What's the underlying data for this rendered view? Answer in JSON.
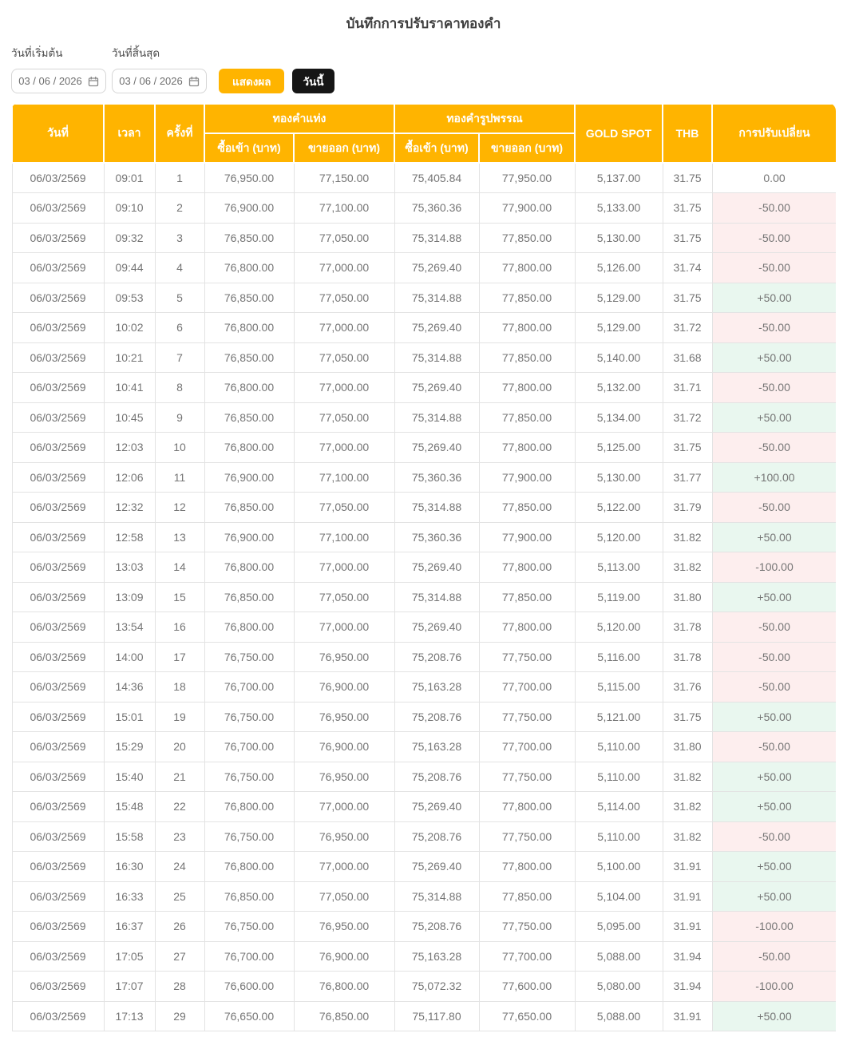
{
  "page": {
    "title": "บันทึกการปรับราคาทองคำ"
  },
  "filters": {
    "start_date_label": "วันที่เริ่มต้น",
    "end_date_label": "วันที่สิ้นสุด",
    "start_date_value": "03 / 06 / 2026",
    "end_date_value": "03 / 06 / 2026",
    "show_button_label": "แสดงผล",
    "today_button_label": "วันนี้",
    "calendar_icon": "calendar-icon"
  },
  "colors": {
    "header_accent": "#ffb400",
    "show_button": "#ffb400",
    "today_button": "#161616",
    "negative_cell_bg": "#fdeeee",
    "positive_cell_bg": "#e9f7ef",
    "body_text": "#757575"
  },
  "table": {
    "headers": {
      "date": "วันที่",
      "time": "เวลา",
      "round": "ครั้งที่",
      "gold_bar_group": "ทองคำแท่ง",
      "gold_ornament_group": "ทองคำรูปพรรณ",
      "bar_buy": "ซื้อเข้า (บาท)",
      "bar_sell": "ขายออก (บาท)",
      "ornament_buy": "ซื้อเข้า (บาท)",
      "ornament_sell": "ขายออก (บาท)",
      "gold_spot": "GOLD SPOT",
      "thb": "THB",
      "adjustment": "การปรับเปลี่ยน"
    },
    "rows": [
      [
        "06/03/2569",
        "09:01",
        "1",
        "76,950.00",
        "77,150.00",
        "75,405.84",
        "77,950.00",
        "5,137.00",
        "31.75",
        "0.00"
      ],
      [
        "06/03/2569",
        "09:10",
        "2",
        "76,900.00",
        "77,100.00",
        "75,360.36",
        "77,900.00",
        "5,133.00",
        "31.75",
        "-50.00"
      ],
      [
        "06/03/2569",
        "09:32",
        "3",
        "76,850.00",
        "77,050.00",
        "75,314.88",
        "77,850.00",
        "5,130.00",
        "31.75",
        "-50.00"
      ],
      [
        "06/03/2569",
        "09:44",
        "4",
        "76,800.00",
        "77,000.00",
        "75,269.40",
        "77,800.00",
        "5,126.00",
        "31.74",
        "-50.00"
      ],
      [
        "06/03/2569",
        "09:53",
        "5",
        "76,850.00",
        "77,050.00",
        "75,314.88",
        "77,850.00",
        "5,129.00",
        "31.75",
        "+50.00"
      ],
      [
        "06/03/2569",
        "10:02",
        "6",
        "76,800.00",
        "77,000.00",
        "75,269.40",
        "77,800.00",
        "5,129.00",
        "31.72",
        "-50.00"
      ],
      [
        "06/03/2569",
        "10:21",
        "7",
        "76,850.00",
        "77,050.00",
        "75,314.88",
        "77,850.00",
        "5,140.00",
        "31.68",
        "+50.00"
      ],
      [
        "06/03/2569",
        "10:41",
        "8",
        "76,800.00",
        "77,000.00",
        "75,269.40",
        "77,800.00",
        "5,132.00",
        "31.71",
        "-50.00"
      ],
      [
        "06/03/2569",
        "10:45",
        "9",
        "76,850.00",
        "77,050.00",
        "75,314.88",
        "77,850.00",
        "5,134.00",
        "31.72",
        "+50.00"
      ],
      [
        "06/03/2569",
        "12:03",
        "10",
        "76,800.00",
        "77,000.00",
        "75,269.40",
        "77,800.00",
        "5,125.00",
        "31.75",
        "-50.00"
      ],
      [
        "06/03/2569",
        "12:06",
        "11",
        "76,900.00",
        "77,100.00",
        "75,360.36",
        "77,900.00",
        "5,130.00",
        "31.77",
        "+100.00"
      ],
      [
        "06/03/2569",
        "12:32",
        "12",
        "76,850.00",
        "77,050.00",
        "75,314.88",
        "77,850.00",
        "5,122.00",
        "31.79",
        "-50.00"
      ],
      [
        "06/03/2569",
        "12:58",
        "13",
        "76,900.00",
        "77,100.00",
        "75,360.36",
        "77,900.00",
        "5,120.00",
        "31.82",
        "+50.00"
      ],
      [
        "06/03/2569",
        "13:03",
        "14",
        "76,800.00",
        "77,000.00",
        "75,269.40",
        "77,800.00",
        "5,113.00",
        "31.82",
        "-100.00"
      ],
      [
        "06/03/2569",
        "13:09",
        "15",
        "76,850.00",
        "77,050.00",
        "75,314.88",
        "77,850.00",
        "5,119.00",
        "31.80",
        "+50.00"
      ],
      [
        "06/03/2569",
        "13:54",
        "16",
        "76,800.00",
        "77,000.00",
        "75,269.40",
        "77,800.00",
        "5,120.00",
        "31.78",
        "-50.00"
      ],
      [
        "06/03/2569",
        "14:00",
        "17",
        "76,750.00",
        "76,950.00",
        "75,208.76",
        "77,750.00",
        "5,116.00",
        "31.78",
        "-50.00"
      ],
      [
        "06/03/2569",
        "14:36",
        "18",
        "76,700.00",
        "76,900.00",
        "75,163.28",
        "77,700.00",
        "5,115.00",
        "31.76",
        "-50.00"
      ],
      [
        "06/03/2569",
        "15:01",
        "19",
        "76,750.00",
        "76,950.00",
        "75,208.76",
        "77,750.00",
        "5,121.00",
        "31.75",
        "+50.00"
      ],
      [
        "06/03/2569",
        "15:29",
        "20",
        "76,700.00",
        "76,900.00",
        "75,163.28",
        "77,700.00",
        "5,110.00",
        "31.80",
        "-50.00"
      ],
      [
        "06/03/2569",
        "15:40",
        "21",
        "76,750.00",
        "76,950.00",
        "75,208.76",
        "77,750.00",
        "5,110.00",
        "31.82",
        "+50.00"
      ],
      [
        "06/03/2569",
        "15:48",
        "22",
        "76,800.00",
        "77,000.00",
        "75,269.40",
        "77,800.00",
        "5,114.00",
        "31.82",
        "+50.00"
      ],
      [
        "06/03/2569",
        "15:58",
        "23",
        "76,750.00",
        "76,950.00",
        "75,208.76",
        "77,750.00",
        "5,110.00",
        "31.82",
        "-50.00"
      ],
      [
        "06/03/2569",
        "16:30",
        "24",
        "76,800.00",
        "77,000.00",
        "75,269.40",
        "77,800.00",
        "5,100.00",
        "31.91",
        "+50.00"
      ],
      [
        "06/03/2569",
        "16:33",
        "25",
        "76,850.00",
        "77,050.00",
        "75,314.88",
        "77,850.00",
        "5,104.00",
        "31.91",
        "+50.00"
      ],
      [
        "06/03/2569",
        "16:37",
        "26",
        "76,750.00",
        "76,950.00",
        "75,208.76",
        "77,750.00",
        "5,095.00",
        "31.91",
        "-100.00"
      ],
      [
        "06/03/2569",
        "17:05",
        "27",
        "76,700.00",
        "76,900.00",
        "75,163.28",
        "77,700.00",
        "5,088.00",
        "31.94",
        "-50.00"
      ],
      [
        "06/03/2569",
        "17:07",
        "28",
        "76,600.00",
        "76,800.00",
        "75,072.32",
        "77,600.00",
        "5,080.00",
        "31.94",
        "-100.00"
      ],
      [
        "06/03/2569",
        "17:13",
        "29",
        "76,650.00",
        "76,850.00",
        "75,117.80",
        "77,650.00",
        "5,088.00",
        "31.91",
        "+50.00"
      ]
    ]
  }
}
